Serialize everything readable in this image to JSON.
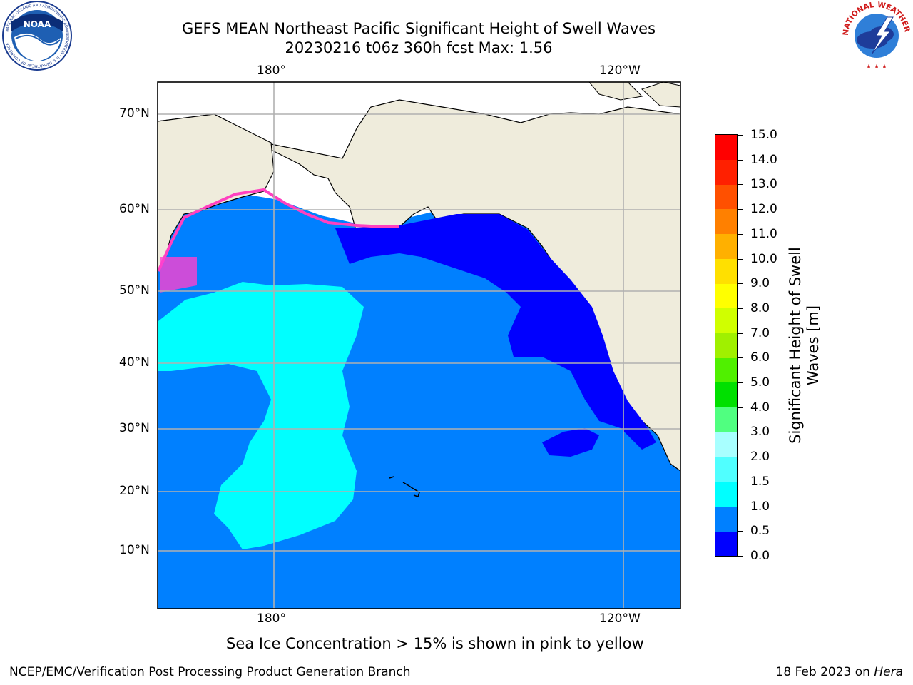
{
  "title": {
    "line1": "GEFS MEAN Northeast Pacific Significant Height of Swell Waves",
    "line2": "20230216 t06z 360h fcst   Max: 1.56"
  },
  "map": {
    "top_lon_labels": [
      "180°",
      "120°W"
    ],
    "bottom_lon_labels": [
      "180°",
      "120°W"
    ],
    "lat_labels": [
      "70°N",
      "60°N",
      "50°N",
      "40°N",
      "30°N",
      "20°N",
      "10°N"
    ],
    "colors": {
      "land": "#efecdc",
      "ice_free_ocean": "#ffffff",
      "grid": "#b0b0b0"
    }
  },
  "colorbar": {
    "title": "Significant Height of Swell Waves [m]",
    "ticks": [
      "0.0",
      "0.5",
      "1.0",
      "1.5",
      "2.0",
      "3.0",
      "4.0",
      "5.0",
      "6.0",
      "7.0",
      "8.0",
      "9.0",
      "10.0",
      "11.0",
      "12.0",
      "13.0",
      "14.0",
      "15.0"
    ],
    "colors": [
      "#0000ff",
      "#0080ff",
      "#00ffff",
      "#50ffff",
      "#a8ffff",
      "#50ff80",
      "#00e000",
      "#50f000",
      "#a0f000",
      "#d0ff00",
      "#ffff00",
      "#ffe000",
      "#ffb000",
      "#ff8000",
      "#ff5000",
      "#ff2000",
      "#ff0000"
    ]
  },
  "logos": {
    "noaa": {
      "text": "NOAA",
      "ring_text": "NATIONAL OCEANIC AND ATMOSPHERIC ADMINISTRATION · U.S. DEPARTMENT OF COMMERCE"
    },
    "nws": {
      "ring_text": "NATIONAL WEATHER SERVICE"
    }
  },
  "note": "Sea Ice Concentration > 15% is shown in pink to yellow",
  "footer": {
    "left": "NCEP/EMC/Verification Post Processing Product Generation Branch",
    "date": "18 Feb 2023 on ",
    "machine": "Hera"
  }
}
